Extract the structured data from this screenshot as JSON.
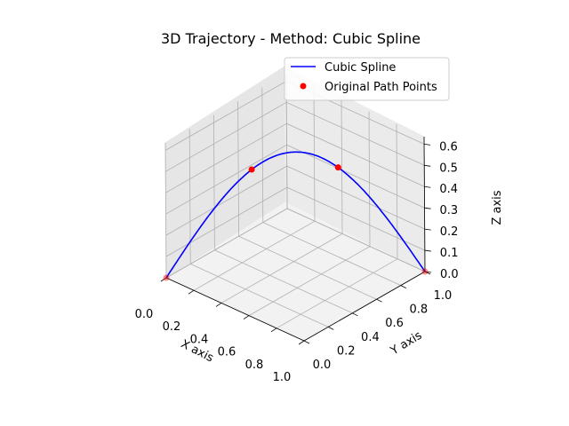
{
  "chart_data": {
    "type": "line3d",
    "title": "3D Trajectory - Method: Cubic Spline",
    "xlabel": "X axis",
    "ylabel": "Y axis",
    "zlabel": "Z axis",
    "xlim": [
      0.0,
      1.0
    ],
    "ylim": [
      0.0,
      1.0
    ],
    "zlim": [
      0.0,
      0.6
    ],
    "x_ticks": [
      "0.0",
      "0.2",
      "0.4",
      "0.6",
      "0.8",
      "1.0"
    ],
    "y_ticks": [
      "0.0",
      "0.2",
      "0.4",
      "0.6",
      "0.8",
      "1.0"
    ],
    "z_ticks": [
      "0.0",
      "0.1",
      "0.2",
      "0.3",
      "0.4",
      "0.5",
      "0.6"
    ],
    "grid": true,
    "legend_position": "top-right",
    "legend": [
      {
        "label": "Cubic Spline",
        "kind": "line",
        "color": "#0000ff"
      },
      {
        "label": "Original Path Points",
        "kind": "marker",
        "color": "#ff0000"
      }
    ],
    "series": [
      {
        "name": "Cubic Spline",
        "kind": "line",
        "color": "#0000ff",
        "points": [
          [
            0.0,
            0.0,
            0.0
          ],
          [
            0.333,
            0.333,
            0.5
          ],
          [
            0.667,
            0.667,
            0.5
          ],
          [
            1.0,
            1.0,
            0.0
          ]
        ]
      },
      {
        "name": "Original Path Points",
        "kind": "scatter",
        "color": "#ff0000",
        "points": [
          [
            0.0,
            0.0,
            0.0
          ],
          [
            0.333,
            0.333,
            0.5
          ],
          [
            0.667,
            0.667,
            0.5
          ],
          [
            1.0,
            1.0,
            0.0
          ]
        ]
      }
    ]
  }
}
